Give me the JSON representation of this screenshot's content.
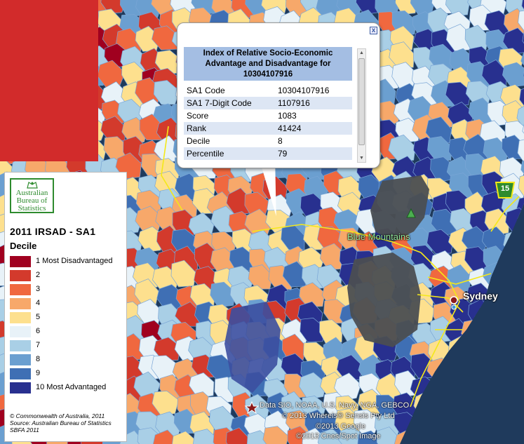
{
  "legend": {
    "logo_line1": "Australian",
    "logo_line2": "Bureau of",
    "logo_line3": "Statistics",
    "title": "2011 IRSAD - SA1",
    "subtitle": "Decile",
    "items": [
      {
        "label": "1 Most Disadvantaged",
        "color": "#a0001f"
      },
      {
        "label": "2",
        "color": "#d33a2c"
      },
      {
        "label": "3",
        "color": "#f0683f"
      },
      {
        "label": "4",
        "color": "#f7a86a"
      },
      {
        "label": "5",
        "color": "#fde08e"
      },
      {
        "label": "6",
        "color": "#e8f2f8"
      },
      {
        "label": "7",
        "color": "#a9cfe6"
      },
      {
        "label": "8",
        "color": "#6b9fd0"
      },
      {
        "label": "9",
        "color": "#3f6fb4"
      },
      {
        "label": "10 Most Advantaged",
        "color": "#28308f"
      }
    ],
    "foot1": "© Commonwealth of Australia, 2011",
    "foot2": "Source: Australian Bureau of Statistics",
    "foot3": "SBFA 2011"
  },
  "popup": {
    "close_label": "x",
    "header": "Index of Relative Socio-Economic Advantage and Disadvantage for 10304107916",
    "rows": [
      {
        "key": "SA1 Code",
        "value": "10304107916"
      },
      {
        "key": "SA1 7-Digit Code",
        "value": "1107916"
      },
      {
        "key": "Score",
        "value": "1083"
      },
      {
        "key": "Rank",
        "value": "41424"
      },
      {
        "key": "Decile",
        "value": "8"
      },
      {
        "key": "Percentile",
        "value": "79"
      }
    ]
  },
  "map": {
    "label_blue_mountains": "Blue Mountains",
    "label_sydney": "Sydney",
    "highway_shield": "15",
    "credit1": "Data SIO, NOAA, U.S. Navy, NGA, GEBCO",
    "credit2": "© 2013 Whereis® Sensis Pty Ltd",
    "credit3": "©2013 Google",
    "credit4": "©2013 Cnes/Spot Image"
  }
}
